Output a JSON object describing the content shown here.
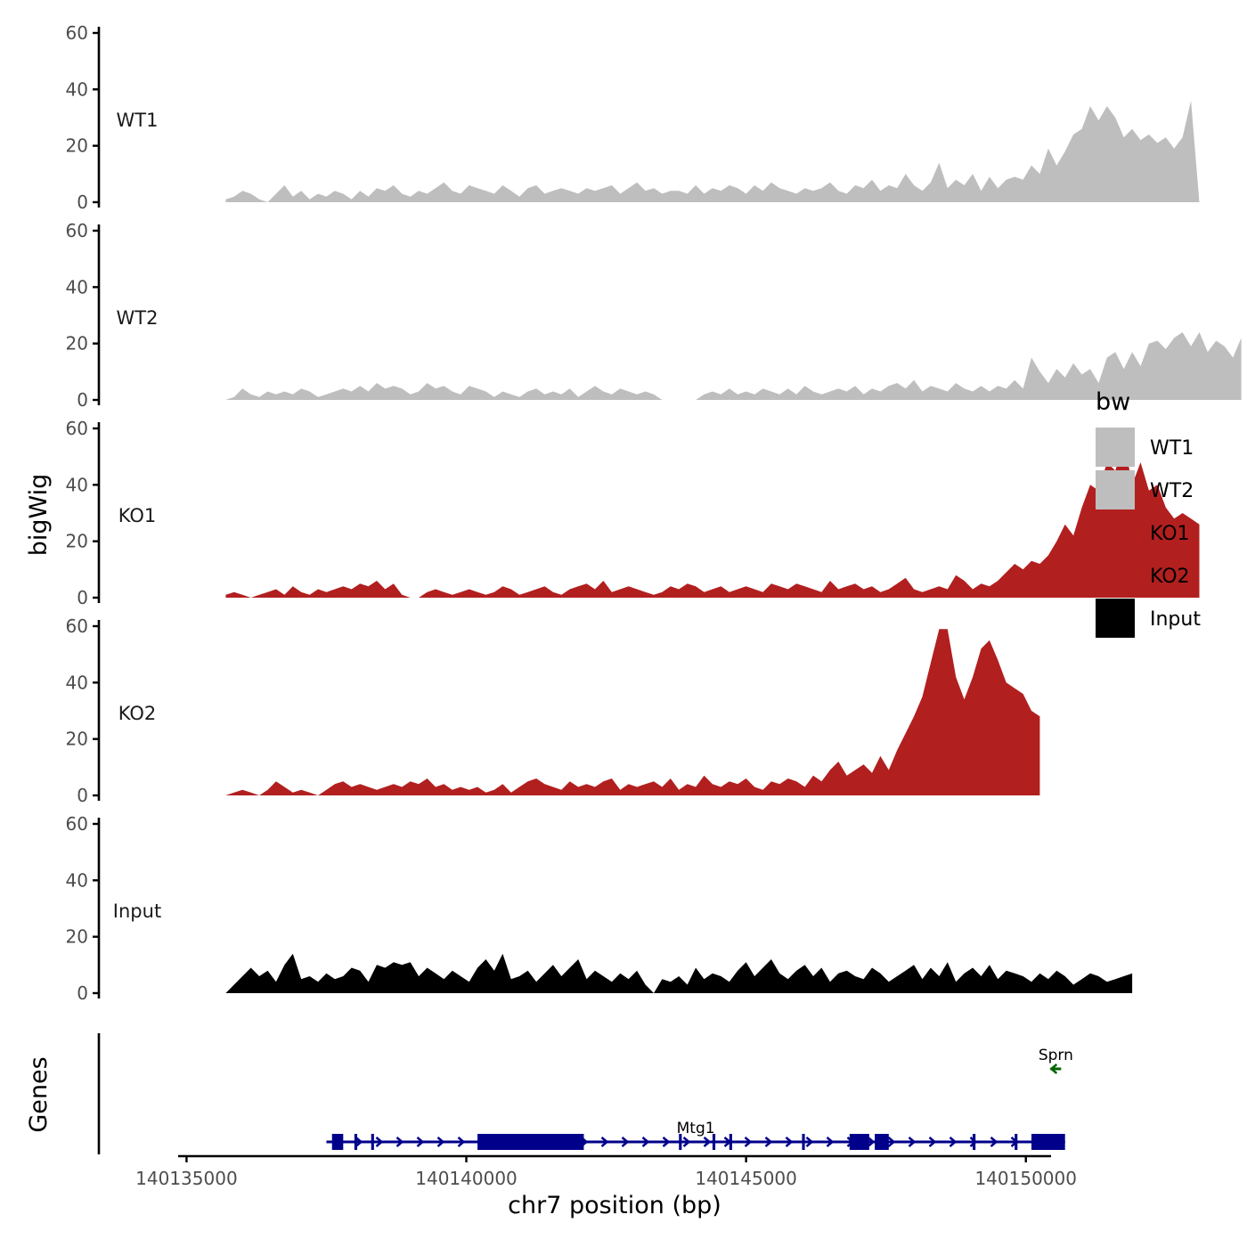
{
  "chart_data": {
    "type": "area",
    "title": "",
    "xlabel": "chr7 position (bp)",
    "ylabel": "bigWig",
    "genes_label": "Genes",
    "xlim": [
      134850,
      150450
    ],
    "ylim": [
      0,
      60
    ],
    "yticks": [
      0,
      20,
      40,
      60
    ],
    "xticks": [
      {
        "value": 135000,
        "label": "140135000"
      },
      {
        "value": 140000,
        "label": "140140000"
      },
      {
        "value": 145000,
        "label": "140145000"
      },
      {
        "value": 150000,
        "label": "140150000"
      }
    ],
    "x_start": 135700,
    "x_step": 150,
    "legend": {
      "title": "bw",
      "entries": [
        {
          "label": "WT1",
          "color": "#bebebe"
        },
        {
          "label": "WT2",
          "color": "#bebebe"
        },
        {
          "label": "KO1",
          "color": "#b21f1f"
        },
        {
          "label": "KO2",
          "color": "#b21f1f"
        },
        {
          "label": "Input",
          "color": "#000000"
        }
      ]
    },
    "series": [
      {
        "name": "WT1",
        "color": "#bebebe",
        "values": [
          1,
          2,
          4,
          3,
          1,
          0,
          3,
          6,
          2,
          4,
          1,
          3,
          2,
          4,
          3,
          1,
          4,
          2,
          5,
          4,
          6,
          3,
          2,
          4,
          3,
          5,
          7,
          4,
          3,
          6,
          5,
          4,
          3,
          6,
          4,
          2,
          5,
          6,
          3,
          4,
          5,
          4,
          3,
          5,
          4,
          5,
          6,
          3,
          5,
          7,
          4,
          5,
          3,
          4,
          4,
          3,
          6,
          3,
          5,
          4,
          6,
          5,
          3,
          6,
          4,
          7,
          5,
          4,
          3,
          5,
          4,
          5,
          7,
          4,
          3,
          6,
          5,
          8,
          4,
          6,
          5,
          10,
          6,
          4,
          7,
          14,
          5,
          8,
          6,
          10,
          4,
          9,
          5,
          8,
          9,
          8,
          13,
          10,
          19,
          13,
          18,
          24,
          26,
          34,
          29,
          34,
          30,
          23,
          26,
          22,
          24,
          21,
          23,
          19,
          23,
          36,
          0
        ]
      },
      {
        "name": "WT2",
        "color": "#bebebe",
        "values": [
          0,
          1,
          4,
          2,
          1,
          3,
          2,
          3,
          2,
          4,
          3,
          1,
          2,
          3,
          4,
          3,
          5,
          3,
          6,
          4,
          5,
          4,
          2,
          3,
          6,
          4,
          5,
          3,
          2,
          5,
          4,
          3,
          1,
          3,
          2,
          1,
          3,
          4,
          2,
          3,
          2,
          4,
          1,
          3,
          5,
          3,
          2,
          4,
          3,
          2,
          3,
          2,
          0,
          0,
          0,
          0,
          0,
          2,
          3,
          2,
          4,
          2,
          3,
          2,
          4,
          3,
          2,
          4,
          2,
          5,
          3,
          2,
          3,
          4,
          3,
          5,
          2,
          4,
          3,
          5,
          6,
          4,
          7,
          3,
          5,
          4,
          3,
          6,
          4,
          3,
          5,
          3,
          5,
          4,
          7,
          4,
          15,
          10,
          6,
          11,
          8,
          13,
          9,
          11,
          6,
          15,
          17,
          11,
          17,
          12,
          20,
          21,
          18,
          22,
          24,
          19,
          24,
          17,
          21,
          19,
          15,
          22
        ]
      },
      {
        "name": "KO1",
        "color": "#b21f1f",
        "values": [
          1,
          2,
          1,
          0,
          1,
          2,
          3,
          1,
          4,
          2,
          1,
          3,
          2,
          3,
          4,
          3,
          5,
          4,
          6,
          3,
          5,
          1,
          0,
          0,
          2,
          3,
          2,
          1,
          2,
          3,
          2,
          1,
          2,
          4,
          3,
          1,
          2,
          3,
          4,
          2,
          1,
          3,
          4,
          5,
          3,
          6,
          2,
          3,
          4,
          3,
          2,
          1,
          2,
          4,
          3,
          5,
          4,
          2,
          3,
          4,
          2,
          3,
          4,
          3,
          2,
          5,
          4,
          3,
          5,
          4,
          3,
          2,
          6,
          3,
          4,
          5,
          3,
          4,
          2,
          3,
          5,
          7,
          3,
          2,
          3,
          4,
          3,
          8,
          6,
          3,
          5,
          4,
          6,
          9,
          12,
          10,
          13,
          12,
          15,
          20,
          26,
          22,
          32,
          40,
          38,
          48,
          45,
          56,
          40,
          48,
          38,
          40,
          32,
          28,
          30,
          28,
          26
        ]
      },
      {
        "name": "KO2",
        "color": "#b21f1f",
        "values": [
          0,
          1,
          2,
          1,
          0,
          2,
          5,
          3,
          1,
          2,
          1,
          0,
          2,
          4,
          5,
          3,
          4,
          3,
          2,
          3,
          4,
          3,
          5,
          4,
          6,
          3,
          4,
          2,
          3,
          2,
          3,
          1,
          2,
          4,
          1,
          3,
          5,
          6,
          4,
          3,
          2,
          5,
          3,
          4,
          3,
          5,
          6,
          2,
          4,
          3,
          4,
          5,
          3,
          6,
          2,
          4,
          3,
          7,
          4,
          3,
          5,
          4,
          6,
          3,
          2,
          5,
          4,
          6,
          5,
          3,
          7,
          5,
          9,
          12,
          7,
          9,
          11,
          8,
          14,
          9,
          16,
          22,
          28,
          35,
          47,
          59,
          59,
          42,
          34,
          42,
          52,
          55,
          48,
          40,
          38,
          36,
          30,
          28
        ]
      },
      {
        "name": "Input",
        "color": "#000000",
        "values": [
          0,
          3,
          6,
          9,
          6,
          8,
          4,
          10,
          14,
          5,
          6,
          4,
          7,
          5,
          6,
          9,
          8,
          4,
          10,
          9,
          11,
          10,
          11,
          6,
          9,
          7,
          5,
          8,
          6,
          4,
          9,
          12,
          8,
          14,
          5,
          6,
          8,
          4,
          7,
          10,
          6,
          9,
          12,
          5,
          8,
          6,
          4,
          7,
          5,
          8,
          3,
          0,
          5,
          4,
          6,
          3,
          9,
          5,
          7,
          6,
          4,
          8,
          11,
          6,
          9,
          12,
          7,
          5,
          8,
          10,
          6,
          9,
          4,
          7,
          8,
          6,
          5,
          9,
          7,
          4,
          6,
          8,
          10,
          5,
          9,
          6,
          11,
          4,
          7,
          9,
          6,
          10,
          5,
          8,
          7,
          6,
          4,
          7,
          5,
          8,
          6,
          3,
          5,
          7,
          6,
          4,
          5,
          6,
          7
        ]
      }
    ],
    "genes": [
      {
        "name": "Mtg1",
        "color": "#00008b",
        "start": 137500,
        "end": 150700,
        "strand": "+",
        "exons": [
          [
            137600,
            137800
          ],
          [
            138000,
            138050
          ],
          [
            138300,
            138350
          ],
          [
            140200,
            142100
          ],
          [
            143800,
            143850
          ],
          [
            144400,
            144450
          ],
          [
            144700,
            144750
          ],
          [
            146000,
            146050
          ],
          [
            146850,
            147200
          ],
          [
            147300,
            147550
          ],
          [
            149050,
            149100
          ],
          [
            149800,
            149850
          ],
          [
            150100,
            150700
          ]
        ]
      },
      {
        "name": "Sprn",
        "color": "#006400",
        "start": 150450,
        "end": 150620,
        "strand": "-",
        "exons": []
      }
    ]
  }
}
